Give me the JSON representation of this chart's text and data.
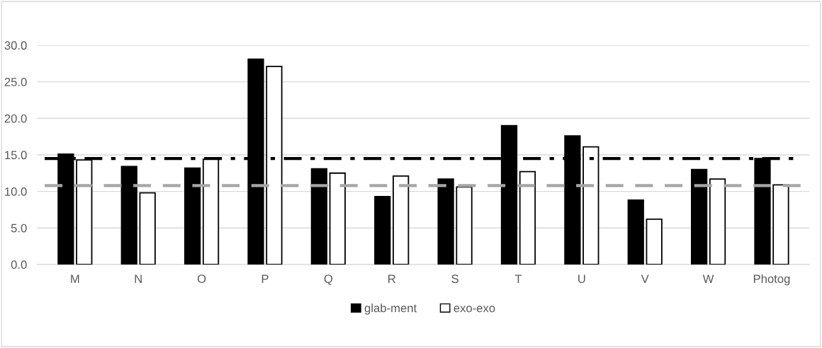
{
  "chart_data": {
    "type": "bar",
    "categories": [
      "M",
      "N",
      "O",
      "P",
      "Q",
      "R",
      "S",
      "T",
      "U",
      "V",
      "W",
      "Photog"
    ],
    "series": [
      {
        "name": "glab-ment",
        "color": "#000000",
        "values": [
          15.1,
          13.4,
          13.2,
          28.1,
          13.1,
          9.3,
          11.7,
          19.0,
          17.6,
          8.8,
          13.0,
          14.5
        ]
      },
      {
        "name": "exo-exo",
        "color": "#ffffff",
        "values": [
          14.3,
          9.8,
          14.4,
          27.1,
          12.5,
          12.1,
          10.6,
          12.7,
          16.1,
          6.2,
          11.7,
          10.9
        ]
      }
    ],
    "ylim": [
      0,
      30
    ],
    "yticks": [
      {
        "value": 0,
        "label": "0.0"
      },
      {
        "value": 5,
        "label": "5.0"
      },
      {
        "value": 10,
        "label": "10.0"
      },
      {
        "value": 15,
        "label": "15.0"
      },
      {
        "value": 20,
        "label": "20.0"
      },
      {
        "value": 25,
        "label": "25.0"
      },
      {
        "value": 30,
        "label": "30.0"
      }
    ],
    "ref_lines": [
      {
        "axis": "y",
        "value": 14.5,
        "color": "#000000",
        "line_style": "dashdot"
      },
      {
        "axis": "y",
        "value": 10.8,
        "color": "#a6a6a6",
        "line_style": "dashed"
      }
    ],
    "grid": "y",
    "legend": "bottom"
  }
}
